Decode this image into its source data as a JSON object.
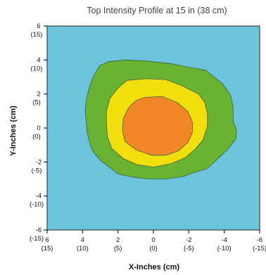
{
  "chart_data": {
    "type": "contour",
    "title": "Top Intensity Profile at 15 in (38 cm)",
    "xlabel": "X-Inches (cm)",
    "ylabel": "Y-Inches (cm)",
    "xlim": [
      6,
      -6
    ],
    "ylim": [
      -6,
      6
    ],
    "x_ticks": [
      {
        "value": 6,
        "label": "6",
        "sub": "(15)"
      },
      {
        "value": 4,
        "label": "4",
        "sub": "(10)"
      },
      {
        "value": 2,
        "label": "2",
        "sub": "(5)"
      },
      {
        "value": 0,
        "label": "0",
        "sub": "(0)"
      },
      {
        "value": -2,
        "label": "-2",
        "sub": "(-5)"
      },
      {
        "value": -4,
        "label": "-4",
        "sub": "(-10)"
      },
      {
        "value": -6,
        "label": "-6",
        "sub": "(-15)"
      }
    ],
    "y_ticks": [
      {
        "value": 6,
        "label": "6",
        "sub": "(15)"
      },
      {
        "value": 4,
        "label": "4",
        "sub": "(10)"
      },
      {
        "value": 2,
        "label": "2",
        "sub": "(5)"
      },
      {
        "value": 0,
        "label": "0",
        "sub": "(0)"
      },
      {
        "value": -2,
        "label": "-2",
        "sub": "(-5)"
      },
      {
        "value": -4,
        "label": "-4",
        "sub": "(-10)"
      },
      {
        "value": -6,
        "label": "-6",
        "sub": "(-15)"
      }
    ],
    "background_color": "#6cc3dc",
    "levels": [
      {
        "color": "#6ab232",
        "points": [
          [
            3.05,
            3.65
          ],
          [
            2.55,
            3.9
          ],
          [
            1.55,
            4.0
          ],
          [
            0.5,
            3.95
          ],
          [
            -0.9,
            3.8
          ],
          [
            -1.9,
            3.6
          ],
          [
            -2.95,
            3.4
          ],
          [
            -3.3,
            3.1
          ],
          [
            -3.9,
            2.6
          ],
          [
            -4.35,
            1.95
          ],
          [
            -4.5,
            1.2
          ],
          [
            -4.5,
            0.4
          ],
          [
            -4.7,
            -0.15
          ],
          [
            -4.65,
            -0.65
          ],
          [
            -4.2,
            -1.25
          ],
          [
            -3.6,
            -1.85
          ],
          [
            -3.0,
            -2.4
          ],
          [
            -2.2,
            -2.65
          ],
          [
            -1.7,
            -2.85
          ],
          [
            -0.7,
            -3.0
          ],
          [
            0.2,
            -3.0
          ],
          [
            1.1,
            -2.9
          ],
          [
            2.0,
            -2.7
          ],
          [
            2.5,
            -2.3
          ],
          [
            3.0,
            -1.9
          ],
          [
            3.4,
            -1.4
          ],
          [
            3.6,
            -0.9
          ],
          [
            3.75,
            -0.2
          ],
          [
            3.8,
            0.4
          ],
          [
            3.85,
            1.0
          ],
          [
            3.8,
            1.6
          ],
          [
            3.65,
            2.25
          ],
          [
            3.4,
            3.0
          ]
        ]
      },
      {
        "color": "#f2dd0d",
        "points": [
          [
            1.5,
            2.8
          ],
          [
            0.4,
            2.9
          ],
          [
            -0.7,
            2.85
          ],
          [
            -1.6,
            2.5
          ],
          [
            -2.55,
            2.0
          ],
          [
            -2.9,
            1.5
          ],
          [
            -3.05,
            0.85
          ],
          [
            -3.05,
            0.1
          ],
          [
            -2.8,
            -0.7
          ],
          [
            -2.4,
            -1.2
          ],
          [
            -1.8,
            -1.75
          ],
          [
            -1.0,
            -2.1
          ],
          [
            0.0,
            -2.3
          ],
          [
            0.95,
            -2.15
          ],
          [
            1.7,
            -1.8
          ],
          [
            2.35,
            -1.2
          ],
          [
            2.6,
            -0.5
          ],
          [
            2.65,
            0.25
          ],
          [
            2.65,
            1.0
          ],
          [
            2.45,
            1.75
          ],
          [
            2.0,
            2.35
          ]
        ]
      },
      {
        "color": "#f18825",
        "points": [
          [
            0.5,
            1.8
          ],
          [
            -0.5,
            1.85
          ],
          [
            -1.35,
            1.5
          ],
          [
            -1.95,
            0.95
          ],
          [
            -2.2,
            0.35
          ],
          [
            -2.2,
            -0.25
          ],
          [
            -1.95,
            -0.85
          ],
          [
            -1.4,
            -1.35
          ],
          [
            -0.7,
            -1.6
          ],
          [
            0.1,
            -1.6
          ],
          [
            0.95,
            -1.3
          ],
          [
            1.6,
            -0.8
          ],
          [
            1.75,
            -0.15
          ],
          [
            1.7,
            0.55
          ],
          [
            1.4,
            1.2
          ],
          [
            1.0,
            1.6
          ]
        ]
      }
    ],
    "grid": false,
    "legend": "none"
  }
}
